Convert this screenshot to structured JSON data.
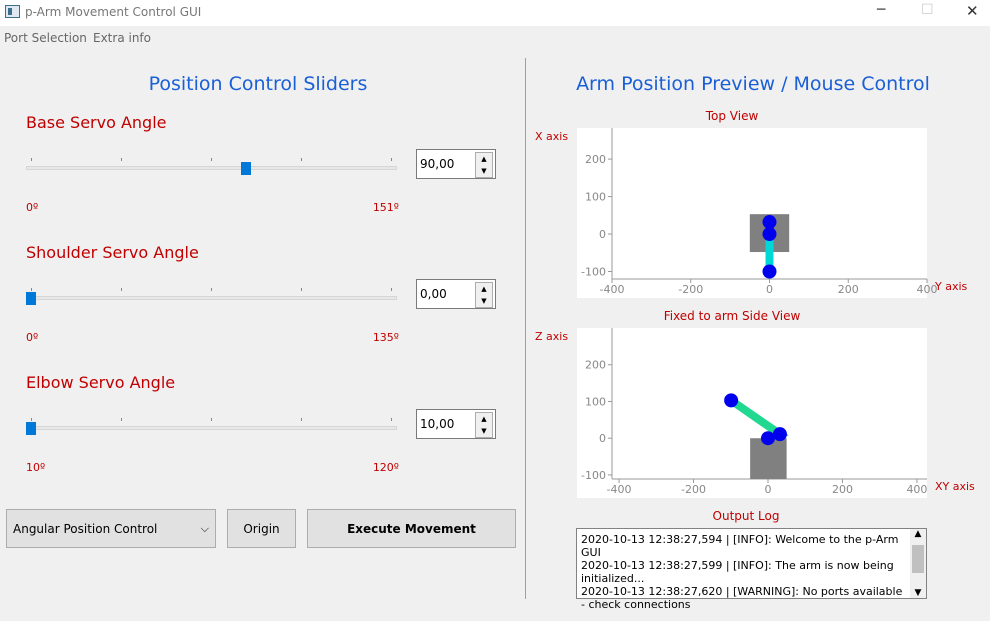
{
  "window": {
    "title": "p-Arm Movement Control GUI"
  },
  "menu": [
    "Port Selection",
    "Extra info"
  ],
  "left": {
    "title": "Position Control Sliders",
    "sliders": [
      {
        "label": "Base Servo Angle",
        "min": {
          "value": 0,
          "label": "0º"
        },
        "max": {
          "value": 151,
          "label": "151º"
        },
        "value": {
          "value": 90,
          "label": "90,00"
        }
      },
      {
        "label": "Shoulder Servo Angle",
        "min": {
          "value": 0,
          "label": "0º"
        },
        "max": {
          "value": 135,
          "label": "135º"
        },
        "value": {
          "value": 0,
          "label": "0,00"
        }
      },
      {
        "label": "Elbow Servo Angle",
        "min": {
          "value": 10,
          "label": "10º"
        },
        "max": {
          "value": 120,
          "label": "120º"
        },
        "value": {
          "value": 10,
          "label": "10,00"
        }
      }
    ],
    "mode": "Angular Position Control",
    "buttons": [
      "Origin",
      "Execute Movement"
    ]
  },
  "right": {
    "title": "Arm Position Preview / Mouse Control",
    "log_title": "Output Log",
    "log": [
      "2020-10-13 12:38:27,594 | [INFO]: Welcome to the p-Arm GUI",
      "2020-10-13 12:38:27,599 | [INFO]: The arm is now being initialized...",
      "2020-10-13 12:38:27,620 | [WARNING]: No ports available - check connections"
    ]
  },
  "chart_data": [
    {
      "type": "line",
      "title": "Top View",
      "ylabel": "X axis",
      "xlabel": "Y axis",
      "xlim": [
        -400,
        400
      ],
      "ylim": [
        -120,
        283
      ],
      "xticks": [
        -400,
        -200,
        0,
        200,
        400
      ],
      "yticks": [
        -100,
        0,
        100,
        200
      ],
      "x": [
        0,
        0,
        0
      ],
      "values": [
        0,
        32,
        -100
      ],
      "color": "#00d8d8",
      "marker_color": "#0000ee",
      "base": {
        "x": [
          -50,
          50
        ],
        "y": [
          -48,
          53
        ],
        "color": "#808080"
      }
    },
    {
      "type": "line",
      "title": "Fixed to arm Side View",
      "ylabel": "Z axis",
      "xlabel": "XY axis",
      "xlim": [
        -419,
        427
      ],
      "ylim": [
        -111,
        300
      ],
      "xticks": [
        -400,
        -200,
        0,
        200,
        400
      ],
      "yticks": [
        -100,
        0,
        100,
        200
      ],
      "x": [
        0,
        32,
        -99
      ],
      "values": [
        0,
        11,
        103
      ],
      "color": "#20d890",
      "marker_color": "#0000ee",
      "base": {
        "x": [
          -48,
          50
        ],
        "y": [
          -111,
          0
        ],
        "color": "#808080"
      }
    }
  ]
}
